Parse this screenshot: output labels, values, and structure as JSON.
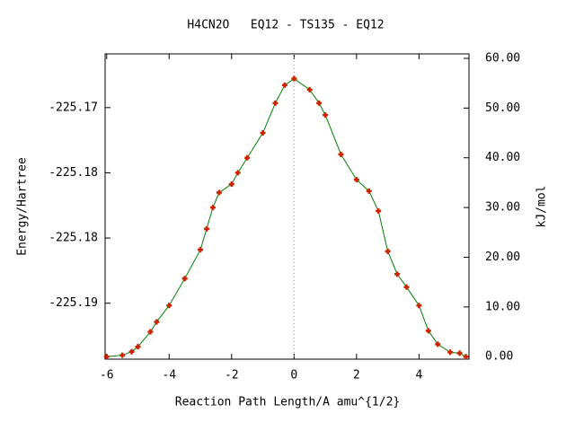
{
  "chart_data": {
    "type": "line",
    "title": "H4CN2O   EQ12 - TS135 - EQ12",
    "x_label": "Reaction Path Length/A amu^{1/2}",
    "y_label": "Energy/Hartree",
    "y2_label": "kJ/mol",
    "x": [
      -6,
      -5.5,
      -5.2,
      -5,
      -4.6,
      -4.4,
      -4,
      -3.5,
      -3,
      -2.8,
      -2.6,
      -2.4,
      -2,
      -1.8,
      -1.5,
      -1,
      -0.6,
      -0.3,
      0,
      0.5,
      0.8,
      1,
      1.5,
      2,
      2.4,
      2.7,
      3,
      3.3,
      3.6,
      4,
      4.3,
      4.6,
      5,
      5.3,
      5.5
    ],
    "series": [
      {
        "name": "kJ/mol",
        "axis": "y2",
        "color": "#008000",
        "marker_color": "#cc2200",
        "values": [
          0,
          0.3,
          1,
          2,
          5,
          7,
          10.3,
          15.7,
          21.5,
          25.7,
          30,
          33,
          34.7,
          37,
          40,
          45,
          51,
          54.6,
          55.9,
          53.7,
          51,
          48.6,
          40.7,
          35.6,
          33.3,
          29.3,
          21.2,
          16.6,
          14,
          10.3,
          5.2,
          2.5,
          0.9,
          0.7,
          0
        ]
      }
    ],
    "xlim": [
      -6.05,
      5.6
    ],
    "xticks": [
      -6,
      -4,
      -2,
      0,
      2,
      4
    ],
    "ylim": [
      -225.18929,
      -225.16588
    ],
    "yticks": [
      {
        "value": -225.17,
        "label": "-225.17"
      },
      {
        "value": -225.175,
        "label": "-225.18"
      },
      {
        "value": -225.18,
        "label": "-225.18"
      },
      {
        "value": -225.185,
        "label": "-225.19"
      }
    ],
    "y2lim": [
      -0.5,
      60.9
    ],
    "y2ticks": [
      {
        "value": 0,
        "label": "0.00"
      },
      {
        "value": 10,
        "label": "10.00"
      },
      {
        "value": 20,
        "label": "20.00"
      },
      {
        "value": 30,
        "label": "30.00"
      },
      {
        "value": 40,
        "label": "40.00"
      },
      {
        "value": 50,
        "label": "50.00"
      },
      {
        "value": 60,
        "label": "60.00"
      }
    ],
    "vertical_line_x": 0
  }
}
